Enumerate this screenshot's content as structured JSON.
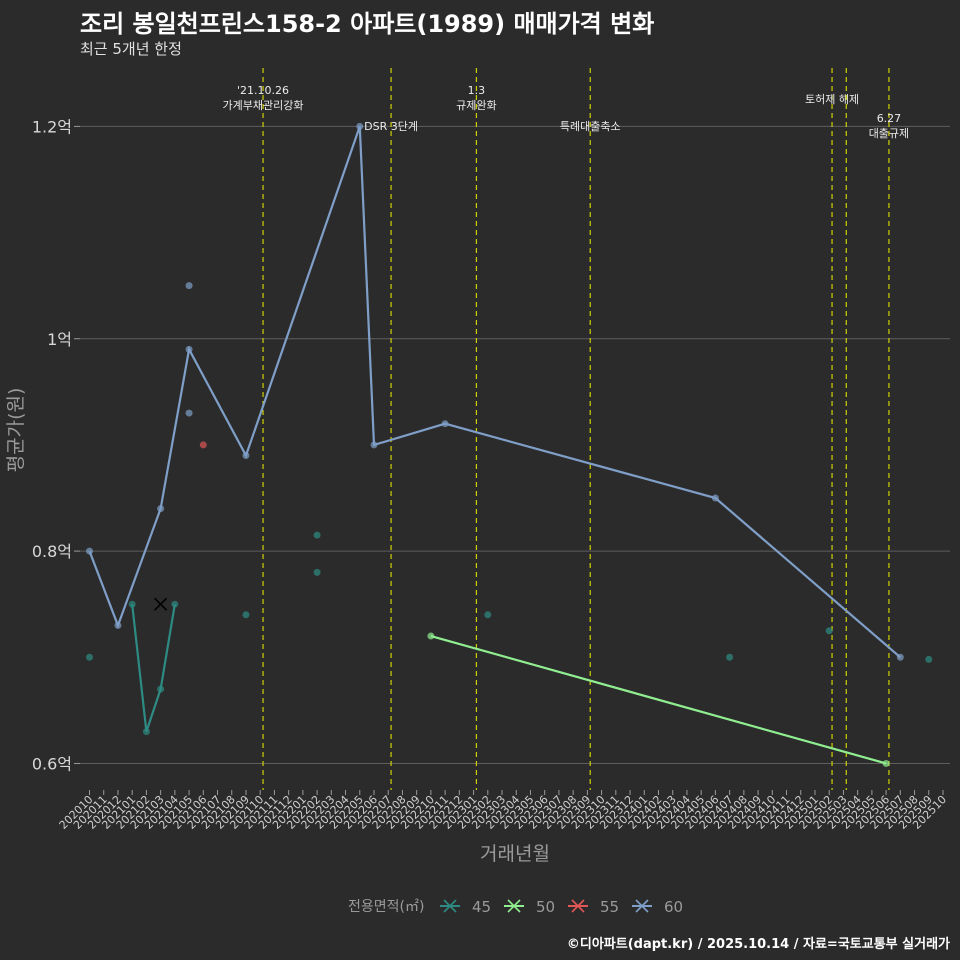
{
  "chart_data": {
    "type": "line",
    "title": "조리 봉일천프린스158-2 아파트(1989) 매매가격 변화",
    "subtitle": "최근 5개년 한정",
    "xlabel": "거래년월",
    "ylabel": "평균가(원)",
    "footer": "©디아파트(dapt.kr) / 2025.10.14 / 자료=국토교통부 실거래가",
    "legend_title": "전용면적(㎡)",
    "y_ticks": [
      {
        "value": 0.6,
        "label": "0.6억"
      },
      {
        "value": 0.8,
        "label": "0.8억"
      },
      {
        "value": 1.0,
        "label": "1억"
      },
      {
        "value": 1.2,
        "label": "1.2억"
      }
    ],
    "ylim": [
      0.575,
      1.255
    ],
    "x_ticks": [
      "202010",
      "202011",
      "202012",
      "202101",
      "202102",
      "202103",
      "202104",
      "202105",
      "202106",
      "202107",
      "202108",
      "202109",
      "202110",
      "202111",
      "202112",
      "202201",
      "202202",
      "202203",
      "202204",
      "202205",
      "202206",
      "202207",
      "202208",
      "202209",
      "202210",
      "202211",
      "202212",
      "202301",
      "202302",
      "202303",
      "202304",
      "202305",
      "202306",
      "202307",
      "202308",
      "202309",
      "202310",
      "202311",
      "202312",
      "202401",
      "202402",
      "202403",
      "202404",
      "202405",
      "202406",
      "202407",
      "202408",
      "202409",
      "202410",
      "202411",
      "202412",
      "202501",
      "202502",
      "202503",
      "202504",
      "202505",
      "202506",
      "202507",
      "202508",
      "202509",
      "202510"
    ],
    "events": [
      {
        "x": 12.2,
        "label": "'21.10.26\n가계부채관리강화",
        "row": 0
      },
      {
        "x": 21.2,
        "label": "DSR 3단계",
        "row": 1
      },
      {
        "x": 27.2,
        "label": "1.3\n규제완화",
        "row": 0
      },
      {
        "x": 35.2,
        "label": "특례대출축소",
        "row": 1
      },
      {
        "x": 52.2,
        "label": "토허제 해제",
        "row": 0
      },
      {
        "x": 53.2,
        "label": "",
        "row": 0
      },
      {
        "x": 56.2,
        "label": "6.27\n대출규제",
        "row": 2
      }
    ],
    "series": [
      {
        "name": "45",
        "color": "#2e8b83",
        "line": [
          [
            3,
            0.75
          ],
          [
            4,
            0.63
          ],
          [
            5,
            0.67
          ],
          [
            6,
            0.75
          ]
        ],
        "points": [
          [
            0,
            0.7
          ],
          [
            3,
            0.75
          ],
          [
            4,
            0.63
          ],
          [
            5,
            0.67
          ],
          [
            6,
            0.75
          ],
          [
            11,
            0.74
          ],
          [
            16,
            0.815
          ],
          [
            16,
            0.78
          ],
          [
            28,
            0.74
          ],
          [
            45,
            0.7
          ],
          [
            52,
            0.725
          ],
          [
            59,
            0.698
          ]
        ],
        "cross": [
          [
            5,
            0.75
          ]
        ]
      },
      {
        "name": "50",
        "color": "#90ee90",
        "line": [
          [
            24,
            0.72
          ],
          [
            56,
            0.6
          ]
        ],
        "points": [
          [
            24,
            0.72
          ],
          [
            56,
            0.6
          ]
        ]
      },
      {
        "name": "55",
        "color": "#e05555",
        "line": [],
        "points": [
          [
            8,
            0.9
          ]
        ]
      },
      {
        "name": "60",
        "color": "#7f9fc8",
        "line": [
          [
            0,
            0.8
          ],
          [
            2,
            0.73
          ],
          [
            5,
            0.84
          ],
          [
            7,
            0.99
          ],
          [
            11,
            0.89
          ],
          [
            19,
            1.2
          ],
          [
            20,
            0.9
          ],
          [
            25,
            0.92
          ],
          [
            44,
            0.85
          ],
          [
            57,
            0.7
          ]
        ],
        "points": [
          [
            0,
            0.8
          ],
          [
            2,
            0.73
          ],
          [
            5,
            0.84
          ],
          [
            7,
            0.99
          ],
          [
            7,
            1.05
          ],
          [
            7,
            0.93
          ],
          [
            11,
            0.89
          ],
          [
            19,
            1.2
          ],
          [
            20,
            0.9
          ],
          [
            25,
            0.92
          ],
          [
            44,
            0.85
          ],
          [
            57,
            0.7
          ]
        ]
      }
    ]
  }
}
